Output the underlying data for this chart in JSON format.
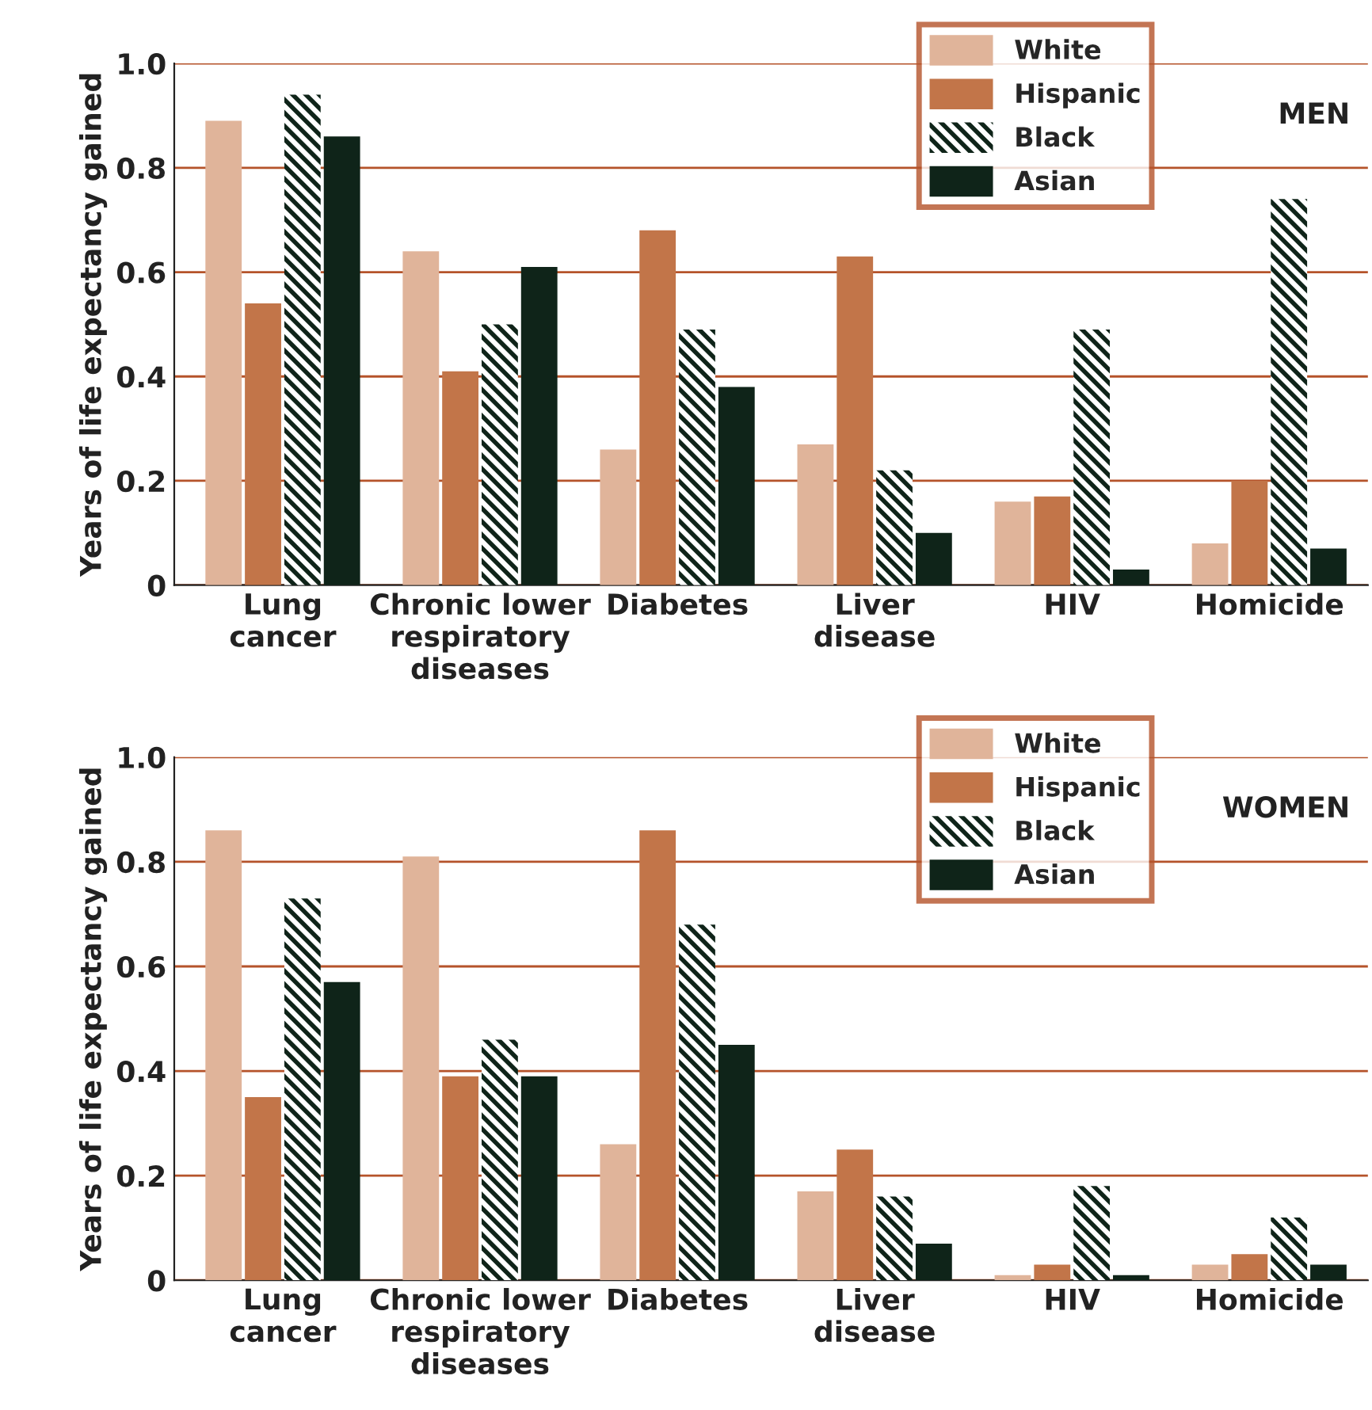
{
  "chart_data": [
    {
      "type": "bar",
      "ylabel": "Years of life expectancy gained",
      "annotations": [
        "MEN"
      ],
      "categories": [
        "Lung\ncancer",
        "Chronic lower\nrespiratory\ndiseases",
        "Diabetes",
        "Liver\ndisease",
        "HIV",
        "Homicide"
      ],
      "series": [
        {
          "name": "White",
          "color": "#e0b49a",
          "values": [
            0.89,
            0.64,
            0.26,
            0.27,
            0.16,
            0.08
          ]
        },
        {
          "name": "Hispanic",
          "color": "#c27549",
          "values": [
            0.54,
            0.41,
            0.68,
            0.63,
            0.17,
            0.2
          ]
        },
        {
          "name": "Black",
          "color": "#0f2419",
          "values": [
            0.94,
            0.5,
            0.49,
            0.22,
            0.49,
            0.74
          ]
        },
        {
          "name": "Asian",
          "color": "#0f2419",
          "values": [
            0.86,
            0.61,
            0.38,
            0.1,
            0.03,
            0.07
          ]
        }
      ],
      "ylim": [
        0,
        1.0
      ],
      "yticks": [
        0,
        0.2,
        0.4,
        0.6,
        0.8,
        {
          "value": 1.0,
          "label": "1.0"
        }
      ],
      "grid": "y",
      "legend": "top right"
    },
    {
      "type": "bar",
      "ylabel": "Years of life expectancy gained",
      "annotations": [
        "WOMEN"
      ],
      "categories": [
        "Lung\ncancer",
        "Chronic lower\nrespiratory\ndiseases",
        "Diabetes",
        "Liver\ndisease",
        "HIV",
        "Homicide"
      ],
      "series": [
        {
          "name": "White",
          "color": "#e0b49a",
          "values": [
            0.86,
            0.81,
            0.26,
            0.17,
            0.01,
            0.03
          ]
        },
        {
          "name": "Hispanic",
          "color": "#c27549",
          "values": [
            0.35,
            0.39,
            0.86,
            0.25,
            0.03,
            0.05
          ]
        },
        {
          "name": "Black",
          "color": "#0f2419",
          "values": [
            0.73,
            0.46,
            0.68,
            0.16,
            0.18,
            0.12
          ]
        },
        {
          "name": "Asian",
          "color": "#0f2419",
          "values": [
            0.57,
            0.39,
            0.45,
            0.07,
            0.01,
            0.03
          ]
        }
      ],
      "ylim": [
        0,
        1.0
      ],
      "yticks": [
        0,
        0.2,
        0.4,
        0.6,
        0.8,
        {
          "value": 1.0,
          "label": "1.0"
        }
      ],
      "grid": "y",
      "legend": "top right"
    }
  ]
}
